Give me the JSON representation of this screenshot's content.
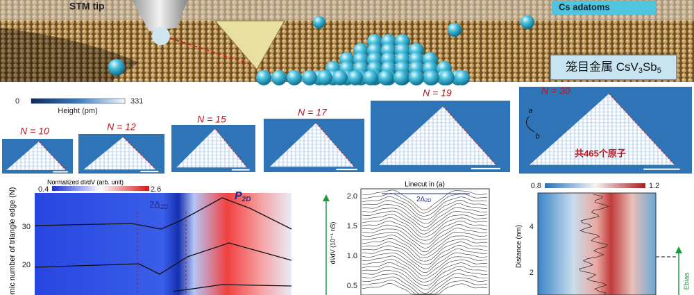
{
  "top": {
    "stm_tip": "STM tip",
    "cs_adatoms": "Cs adatoms",
    "material": {
      "prefix": "笼目金属 CsV",
      "s1": "3",
      "mid": "Sb",
      "s2": "5"
    }
  },
  "colorbar": {
    "min": "0",
    "max": "331",
    "label": "Height (pm)"
  },
  "panels": [
    {
      "label": "N = 10"
    },
    {
      "label": "N = 12"
    },
    {
      "label": "N = 15"
    },
    {
      "label": "N = 17"
    },
    {
      "label": "N = 19"
    },
    {
      "label": "N = 30",
      "dir_a": "a",
      "dir_b": "b",
      "note": "共465个原子"
    }
  ],
  "plot_left": {
    "colorbar_label": "Normalized dI/dV (arb. unit)",
    "cmin": "0.4",
    "cmax": "2.6",
    "peak": {
      "main": "P",
      "sub": "2D"
    },
    "gap": {
      "main": "2Δ",
      "sub": "2D"
    },
    "yticks": [
      "30",
      "20"
    ],
    "ylabel": "omic number of triangle edge (N)"
  },
  "plot_mid": {
    "title": "Linecut in (a)",
    "gap": {
      "main": "2Δ",
      "sub": "2D"
    },
    "yticks": [
      "2.0",
      "1.5",
      "1.0",
      "0.5"
    ],
    "ylabel": "dI/dV (10⁻¹ nS)"
  },
  "plot_right": {
    "cmin": "0.8",
    "cmax": "1.2",
    "yticks": [
      "4",
      "2"
    ],
    "ylabel": "Distance (nm)",
    "arrow_label": "Ebias"
  }
}
